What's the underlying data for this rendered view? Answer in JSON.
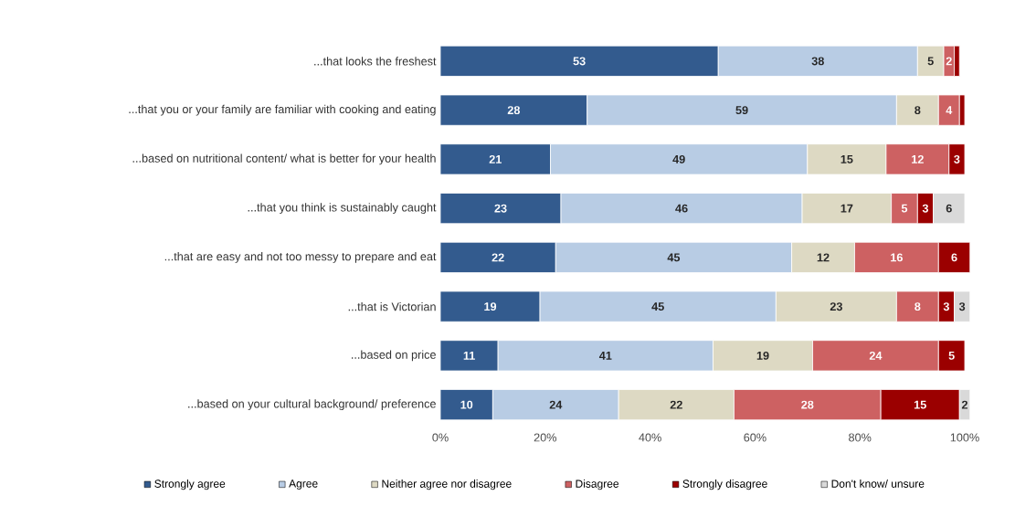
{
  "chart_data": {
    "type": "bar",
    "orientation": "horizontal",
    "stacked": true,
    "categories": [
      "...that looks the freshest",
      "...that you or your family are familiar with cooking and eating",
      "...based on nutritional content/ what is better for your health",
      "...that you think is sustainably caught",
      "...that are easy and not too messy to prepare and eat",
      "...that is Victorian",
      "...based on price",
      "...based on your cultural background/ preference"
    ],
    "series": [
      {
        "name": "Strongly agree",
        "color": "#335b8e",
        "values": [
          53,
          28,
          21,
          23,
          22,
          19,
          11,
          10
        ],
        "value_labels": [
          "53",
          "28",
          "21",
          "23",
          "22",
          "19",
          "11",
          "10"
        ]
      },
      {
        "name": "Agree",
        "color": "#b8cce4",
        "values": [
          38,
          59,
          49,
          46,
          45,
          45,
          41,
          24
        ],
        "value_labels": [
          "38",
          "59",
          "49",
          "46",
          "45",
          "45",
          "41",
          "24"
        ]
      },
      {
        "name": "Neither agree nor disagree",
        "color": "#ddd9c3",
        "values": [
          5,
          8,
          15,
          17,
          12,
          23,
          19,
          22
        ],
        "value_labels": [
          "5",
          "8",
          "15",
          "17",
          "12",
          "23",
          "19",
          "22"
        ]
      },
      {
        "name": "Disagree",
        "color": "#cd6162",
        "values": [
          2,
          4,
          12,
          5,
          16,
          8,
          24,
          28
        ],
        "value_labels": [
          "2",
          "4",
          "12",
          "5",
          "16",
          "8",
          "24",
          "28"
        ]
      },
      {
        "name": "Strongly disagree",
        "color": "#9b0000",
        "values": [
          1,
          1,
          3,
          3,
          6,
          3,
          5,
          15
        ],
        "value_labels": [
          null,
          null,
          "3",
          "3",
          "6",
          "3",
          "5",
          "15"
        ]
      },
      {
        "name": "Don't know/ unsure",
        "color": "#d9d9d9",
        "values": [
          null,
          null,
          null,
          6,
          null,
          3,
          null,
          2
        ],
        "value_labels": [
          null,
          null,
          null,
          "6",
          null,
          "3",
          null,
          "2"
        ]
      }
    ],
    "xlim": [
      0,
      101
    ],
    "xticks": [
      {
        "value": 0,
        "label": "0%"
      },
      {
        "value": 20,
        "label": "20%"
      },
      {
        "value": 40,
        "label": "40%"
      },
      {
        "value": 60,
        "label": "60%"
      },
      {
        "value": 80,
        "label": "80%"
      },
      {
        "value": 100,
        "label": "100%"
      }
    ],
    "grid": false,
    "legend": "bottom"
  }
}
